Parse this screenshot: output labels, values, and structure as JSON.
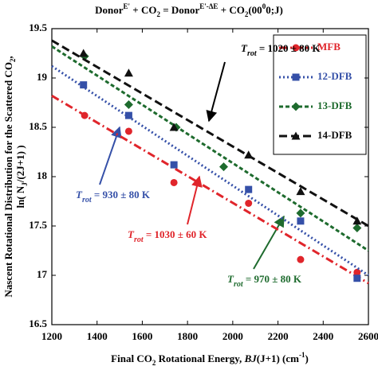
{
  "chart_data": {
    "type": "scatter",
    "title": [
      {
        "text": "Donor"
      },
      {
        "sup": "E'"
      },
      {
        "text": " + CO"
      },
      {
        "sub": "2"
      },
      {
        "text": " = Donor"
      },
      {
        "sup": "E'-ΔE"
      },
      {
        "text": " + CO"
      },
      {
        "sub": "2"
      },
      {
        "text": "(00"
      },
      {
        "sup": "0"
      },
      {
        "text": "0;J)"
      }
    ],
    "x_label": [
      {
        "text": "Final CO"
      },
      {
        "sub": "2"
      },
      {
        "text": " Rotational Energy, "
      },
      {
        "italic": "BJ"
      },
      {
        "text": "(J+1) (cm"
      },
      {
        "sup": "-1"
      },
      {
        "text": ")"
      }
    ],
    "y_label": [
      [
        {
          "text": "Nascent Rotational Distribution for the Scattered CO"
        },
        {
          "sub": "2"
        },
        {
          "text": ","
        }
      ],
      [
        {
          "text": "ln( N"
        },
        {
          "sub": "J"
        },
        {
          "text": "/(2J+1) )"
        }
      ]
    ],
    "xlim": [
      1200,
      2600
    ],
    "ylim": [
      16.5,
      19.5
    ],
    "xticks": [
      1200,
      1400,
      1600,
      1800,
      2000,
      2200,
      2400,
      2600
    ],
    "yticks": [
      16.5,
      17,
      17.5,
      18,
      18.5,
      19,
      19.5
    ],
    "fit_x": [
      1200,
      2600
    ],
    "series": [
      {
        "name": "MFB",
        "color": "#e0252b",
        "marker": "circle",
        "dash": "10 4 2 4",
        "x": [
          1345,
          1540,
          1740,
          2070,
          2300,
          2550
        ],
        "values": [
          18.62,
          18.46,
          17.94,
          17.73,
          17.16,
          17.03
        ],
        "fit": [
          18.82,
          16.92
        ]
      },
      {
        "name": "12-DFB",
        "color": "#3550a8",
        "marker": "square",
        "dash": "2 3",
        "x": [
          1340,
          1540,
          1740,
          2070,
          2300,
          2550
        ],
        "values": [
          18.93,
          18.62,
          18.12,
          17.87,
          17.55,
          16.97
        ],
        "fit": [
          19.12,
          17.0
        ]
      },
      {
        "name": "13-DFB",
        "color": "#1e6b2e",
        "marker": "diamond",
        "dash": "5 3",
        "x": [
          1345,
          1540,
          1750,
          1960,
          2300,
          2550
        ],
        "values": [
          19.22,
          18.73,
          18.5,
          18.1,
          17.63,
          17.48
        ],
        "fit": [
          19.32,
          17.25
        ]
      },
      {
        "name": "14-DFB",
        "color": "#111111",
        "marker": "triangle",
        "dash": "10 5",
        "x": [
          1340,
          1540,
          1740,
          2070,
          2300,
          2550
        ],
        "values": [
          19.25,
          19.05,
          18.5,
          18.22,
          17.85,
          17.55
        ],
        "fit": [
          19.38,
          17.5
        ]
      }
    ],
    "annotations": [
      {
        "italic": "T",
        "sub": "rot",
        "text": " = 1020 ± 80 K",
        "color": "#000000"
      },
      {
        "italic": "T",
        "sub": "rot",
        "text": " = 930 ± 80 K",
        "color": "#3550a8"
      },
      {
        "italic": "T",
        "sub": "rot",
        "text": " = 1030 ± 60 K",
        "color": "#e0252b"
      },
      {
        "italic": "T",
        "sub": "rot",
        "text": " = 970 ± 80 K",
        "color": "#1e6b2e"
      }
    ]
  }
}
